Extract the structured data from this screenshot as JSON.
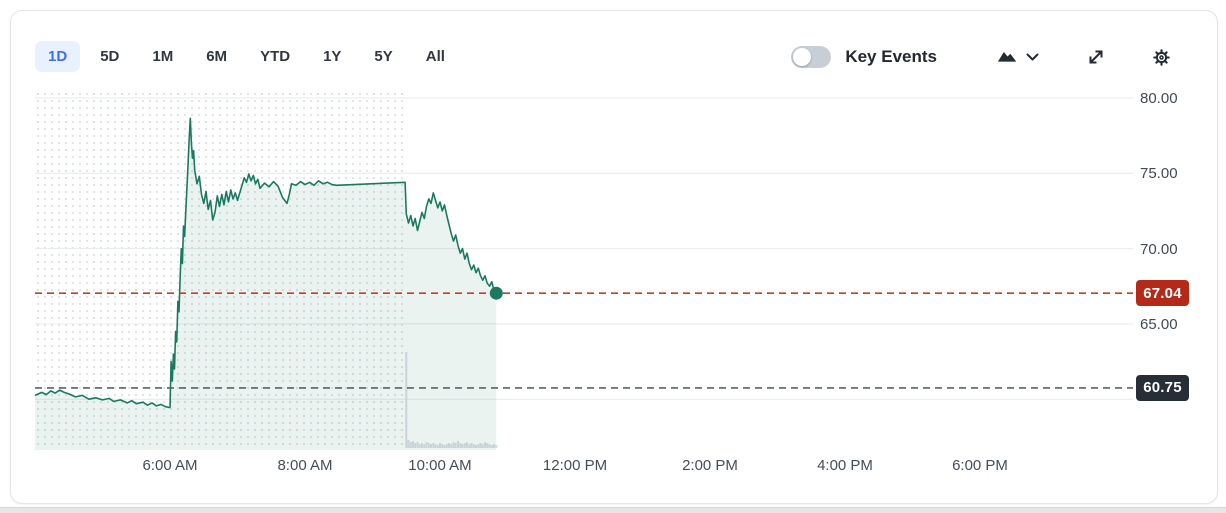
{
  "header": {
    "ranges": [
      {
        "label": "1D",
        "selected": true
      },
      {
        "label": "5D",
        "selected": false
      },
      {
        "label": "1M",
        "selected": false
      },
      {
        "label": "6M",
        "selected": false
      },
      {
        "label": "YTD",
        "selected": false
      },
      {
        "label": "1Y",
        "selected": false
      },
      {
        "label": "5Y",
        "selected": false
      },
      {
        "label": "All",
        "selected": false
      }
    ],
    "key_events_label": "Key Events",
    "key_events_toggle": "off",
    "icons": [
      "area-chart-icon",
      "chevron-down-icon",
      "expand-icon",
      "settings-gear-icon"
    ]
  },
  "chart_data": {
    "type": "area",
    "x_axis": {
      "labels": [
        "6:00 AM",
        "8:00 AM",
        "10:00 AM",
        "12:00 PM",
        "2:00 PM",
        "4:00 PM",
        "6:00 PM"
      ],
      "range": [
        "4:00 AM",
        "8:15 PM"
      ],
      "grid": false
    },
    "y_axis": {
      "tick_labels": [
        "80.00",
        "75.00",
        "70.00",
        "65.00"
      ],
      "gridline_prices": [
        80,
        75,
        70,
        65,
        60
      ],
      "range": [
        56.6,
        80.7
      ],
      "grid": true,
      "position": "right"
    },
    "current_price": {
      "value": "67.04",
      "badge_color": "#b42a18",
      "line_color": "#cd3a29",
      "line_style": "dashed"
    },
    "previous_close": {
      "value": "60.75",
      "badge_color": "#272e35",
      "line_color": "#5a636c",
      "line_style": "dashed"
    },
    "market_open_time": "9:30 AM",
    "pre_market_style": "dotted-background",
    "legend_position": "none",
    "series": [
      {
        "name": "price",
        "color": "#1a7a60",
        "fill": "rgba(24,122,93,0.09)",
        "data": [
          [
            "4:00 AM",
            60.25
          ],
          [
            "4:06 AM",
            60.45
          ],
          [
            "4:10 AM",
            60.3
          ],
          [
            "4:14 AM",
            60.55
          ],
          [
            "4:18 AM",
            60.4
          ],
          [
            "4:22 AM",
            60.6
          ],
          [
            "4:26 AM",
            60.45
          ],
          [
            "4:30 AM",
            60.35
          ],
          [
            "4:36 AM",
            60.15
          ],
          [
            "4:42 AM",
            60.25
          ],
          [
            "4:48 AM",
            60.0
          ],
          [
            "4:54 AM",
            60.1
          ],
          [
            "5:00 AM",
            59.95
          ],
          [
            "5:06 AM",
            60.05
          ],
          [
            "5:10 AM",
            59.85
          ],
          [
            "5:16 AM",
            59.95
          ],
          [
            "5:22 AM",
            59.75
          ],
          [
            "5:26 AM",
            59.9
          ],
          [
            "5:30 AM",
            59.7
          ],
          [
            "5:36 AM",
            59.8
          ],
          [
            "5:40 AM",
            59.6
          ],
          [
            "5:44 AM",
            59.75
          ],
          [
            "5:48 AM",
            59.55
          ],
          [
            "5:52 AM",
            59.65
          ],
          [
            "5:56 AM",
            59.5
          ],
          [
            "5:59 AM",
            59.45
          ],
          [
            "6:00 AM",
            59.45
          ],
          [
            "6:01 AM",
            62.5
          ],
          [
            "6:02 AM",
            61.2
          ],
          [
            "6:03 AM",
            63.0
          ],
          [
            "6:04 AM",
            62.0
          ],
          [
            "6:05 AM",
            64.5
          ],
          [
            "6:06 AM",
            63.8
          ],
          [
            "6:07 AM",
            66.5
          ],
          [
            "6:08 AM",
            65.8
          ],
          [
            "6:09 AM",
            68.0
          ],
          [
            "6:10 AM",
            70.0
          ],
          [
            "6:11 AM",
            69.0
          ],
          [
            "6:12 AM",
            71.5
          ],
          [
            "6:13 AM",
            70.8
          ],
          [
            "6:14 AM",
            72.5
          ],
          [
            "6:15 AM",
            74.0
          ],
          [
            "6:16 AM",
            75.5
          ],
          [
            "6:17 AM",
            77.2
          ],
          [
            "6:18 AM",
            78.65
          ],
          [
            "6:19 AM",
            77.0
          ],
          [
            "6:20 AM",
            76.0
          ],
          [
            "6:21 AM",
            76.5
          ],
          [
            "6:22 AM",
            75.2
          ],
          [
            "6:24 AM",
            74.3
          ],
          [
            "6:26 AM",
            74.8
          ],
          [
            "6:28 AM",
            73.6
          ],
          [
            "6:30 AM",
            73.0
          ],
          [
            "6:32 AM",
            73.8
          ],
          [
            "6:34 AM",
            72.6
          ],
          [
            "6:36 AM",
            73.2
          ],
          [
            "6:38 AM",
            71.9
          ],
          [
            "6:40 AM",
            72.4
          ],
          [
            "6:42 AM",
            73.5
          ],
          [
            "6:44 AM",
            72.8
          ],
          [
            "6:46 AM",
            73.6
          ],
          [
            "6:48 AM",
            72.9
          ],
          [
            "6:50 AM",
            73.8
          ],
          [
            "6:52 AM",
            73.1
          ],
          [
            "6:54 AM",
            73.9
          ],
          [
            "6:56 AM",
            73.3
          ],
          [
            "6:58 AM",
            73.7
          ],
          [
            "7:00 AM",
            73.2
          ],
          [
            "7:04 AM",
            74.2
          ],
          [
            "7:06 AM",
            74.7
          ],
          [
            "7:08 AM",
            74.4
          ],
          [
            "7:10 AM",
            74.95
          ],
          [
            "7:12 AM",
            74.5
          ],
          [
            "7:14 AM",
            74.85
          ],
          [
            "7:16 AM",
            74.3
          ],
          [
            "7:18 AM",
            74.6
          ],
          [
            "7:20 AM",
            74.0
          ],
          [
            "7:24 AM",
            74.35
          ],
          [
            "7:28 AM",
            74.1
          ],
          [
            "7:32 AM",
            74.45
          ],
          [
            "7:36 AM",
            74.15
          ],
          [
            "7:40 AM",
            73.4
          ],
          [
            "7:44 AM",
            73.0
          ],
          [
            "7:46 AM",
            73.6
          ],
          [
            "7:48 AM",
            74.3
          ],
          [
            "7:52 AM",
            74.2
          ],
          [
            "7:56 AM",
            74.45
          ],
          [
            "8:00 AM",
            74.25
          ],
          [
            "8:04 AM",
            74.4
          ],
          [
            "8:08 AM",
            74.2
          ],
          [
            "8:12 AM",
            74.5
          ],
          [
            "8:16 AM",
            74.3
          ],
          [
            "8:20 AM",
            74.4
          ],
          [
            "8:24 AM",
            74.25
          ],
          [
            "8:28 AM",
            74.2
          ],
          [
            "9:29 AM",
            74.4
          ],
          [
            "9:30 AM",
            72.3
          ],
          [
            "9:32 AM",
            71.7
          ],
          [
            "9:34 AM",
            72.2
          ],
          [
            "9:36 AM",
            71.5
          ],
          [
            "9:38 AM",
            72.0
          ],
          [
            "9:40 AM",
            71.2
          ],
          [
            "9:42 AM",
            71.8
          ],
          [
            "9:44 AM",
            72.4
          ],
          [
            "9:46 AM",
            72.0
          ],
          [
            "9:48 AM",
            72.8
          ],
          [
            "9:50 AM",
            73.3
          ],
          [
            "9:52 AM",
            73.0
          ],
          [
            "9:54 AM",
            73.7
          ],
          [
            "9:56 AM",
            73.2
          ],
          [
            "9:58 AM",
            72.7
          ],
          [
            "10:00 AM",
            73.1
          ],
          [
            "10:02 AM",
            72.5
          ],
          [
            "10:04 AM",
            72.9
          ],
          [
            "10:06 AM",
            72.2
          ],
          [
            "10:08 AM",
            71.6
          ],
          [
            "10:10 AM",
            71.0
          ],
          [
            "10:12 AM",
            70.5
          ],
          [
            "10:14 AM",
            70.9
          ],
          [
            "10:16 AM",
            70.2
          ],
          [
            "10:18 AM",
            69.7
          ],
          [
            "10:20 AM",
            70.0
          ],
          [
            "10:22 AM",
            69.3
          ],
          [
            "10:24 AM",
            69.7
          ],
          [
            "10:26 AM",
            69.0
          ],
          [
            "10:28 AM",
            68.6
          ],
          [
            "10:30 AM",
            68.9
          ],
          [
            "10:32 AM",
            68.4
          ],
          [
            "10:34 AM",
            68.7
          ],
          [
            "10:36 AM",
            68.2
          ],
          [
            "10:38 AM",
            67.9
          ],
          [
            "10:40 AM",
            68.2
          ],
          [
            "10:42 AM",
            67.7
          ],
          [
            "10:44 AM",
            67.5
          ],
          [
            "10:46 AM",
            67.8
          ],
          [
            "10:48 AM",
            67.2
          ],
          [
            "10:50 AM",
            67.04
          ]
        ]
      }
    ],
    "volume_bars": [
      [
        "9:30 AM",
        96
      ],
      [
        "9:32 AM",
        8
      ],
      [
        "9:34 AM",
        6
      ],
      [
        "9:36 AM",
        7
      ],
      [
        "9:38 AM",
        5
      ],
      [
        "9:40 AM",
        6
      ],
      [
        "9:42 AM",
        4
      ],
      [
        "9:44 AM",
        5
      ],
      [
        "9:46 AM",
        4
      ],
      [
        "9:48 AM",
        6
      ],
      [
        "9:50 AM",
        5
      ],
      [
        "9:52 AM",
        4
      ],
      [
        "9:54 AM",
        5
      ],
      [
        "9:56 AM",
        4
      ],
      [
        "9:58 AM",
        3
      ],
      [
        "10:00 AM",
        5
      ],
      [
        "10:02 AM",
        4
      ],
      [
        "10:04 AM",
        3
      ],
      [
        "10:06 AM",
        4
      ],
      [
        "10:08 AM",
        5
      ],
      [
        "10:10 AM",
        4
      ],
      [
        "10:12 AM",
        6
      ],
      [
        "10:14 AM",
        5
      ],
      [
        "10:16 AM",
        7
      ],
      [
        "10:18 AM",
        5
      ],
      [
        "10:20 AM",
        4
      ],
      [
        "10:22 AM",
        5
      ],
      [
        "10:24 AM",
        6
      ],
      [
        "10:26 AM",
        4
      ],
      [
        "10:28 AM",
        5
      ],
      [
        "10:30 AM",
        4
      ],
      [
        "10:32 AM",
        3
      ],
      [
        "10:34 AM",
        4
      ],
      [
        "10:36 AM",
        5
      ],
      [
        "10:38 AM",
        4
      ],
      [
        "10:40 AM",
        6
      ],
      [
        "10:42 AM",
        5
      ],
      [
        "10:44 AM",
        4
      ],
      [
        "10:46 AM",
        3
      ],
      [
        "10:48 AM",
        4
      ],
      [
        "10:50 AM",
        3
      ]
    ]
  },
  "colors": {
    "accent_blue": "#3d6ef2",
    "tab_selected_bg": "#e9f1fd",
    "line_green": "#1a7a60",
    "grid": "#e7e9ec",
    "dots": "#d9dde1",
    "volume": "#d9dfe5",
    "text_dark": "#22282f",
    "axis_text": "#414a54"
  }
}
